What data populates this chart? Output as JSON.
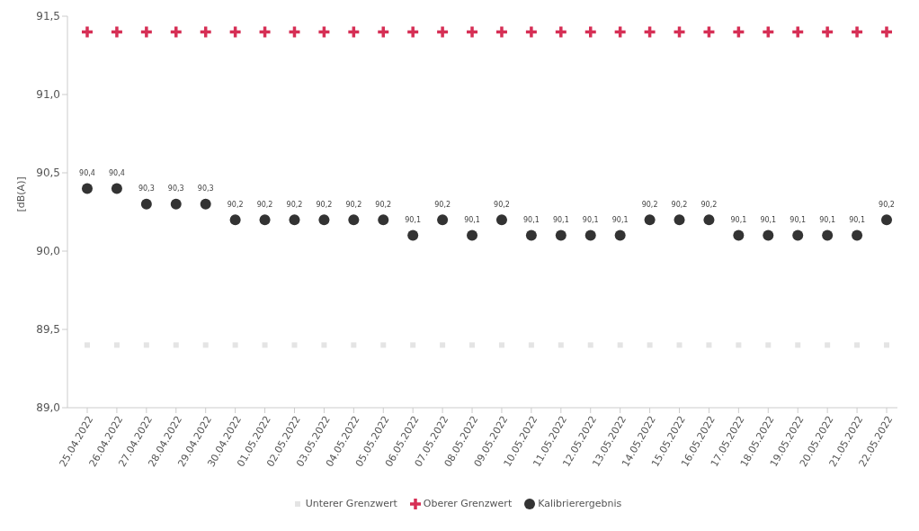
{
  "chart_data": {
    "type": "scatter",
    "ylabel": "[dB(A)]",
    "categories": [
      "25.04.2022",
      "26.04.2022",
      "27.04.2022",
      "28.04.2022",
      "29.04.2022",
      "30.04.2022",
      "01.05.2022",
      "02.05.2022",
      "03.05.2022",
      "04.05.2022",
      "05.05.2022",
      "06.05.2022",
      "07.05.2022",
      "08.05.2022",
      "09.05.2022",
      "10.05.2022",
      "11.05.2022",
      "12.05.2022",
      "13.05.2022",
      "14.05.2022",
      "15.05.2022",
      "16.05.2022",
      "17.05.2022",
      "18.05.2022",
      "19.05.2022",
      "20.05.2022",
      "21.05.2022",
      "22.05.2022"
    ],
    "series": [
      {
        "name": "Unterer Grenzwert",
        "color": "#e4e4e4",
        "marker": "square",
        "values": [
          89.4,
          89.4,
          89.4,
          89.4,
          89.4,
          89.4,
          89.4,
          89.4,
          89.4,
          89.4,
          89.4,
          89.4,
          89.4,
          89.4,
          89.4,
          89.4,
          89.4,
          89.4,
          89.4,
          89.4,
          89.4,
          89.4,
          89.4,
          89.4,
          89.4,
          89.4,
          89.4,
          89.4
        ]
      },
      {
        "name": "Oberer Grenzwert",
        "color": "#d62f55",
        "marker": "cross",
        "values": [
          91.4,
          91.4,
          91.4,
          91.4,
          91.4,
          91.4,
          91.4,
          91.4,
          91.4,
          91.4,
          91.4,
          91.4,
          91.4,
          91.4,
          91.4,
          91.4,
          91.4,
          91.4,
          91.4,
          91.4,
          91.4,
          91.4,
          91.4,
          91.4,
          91.4,
          91.4,
          91.4,
          91.4
        ]
      },
      {
        "name": "Kalibrierergebnis",
        "color": "#333333",
        "marker": "circle",
        "values": [
          90.4,
          90.4,
          90.3,
          90.3,
          90.3,
          90.2,
          90.2,
          90.2,
          90.2,
          90.2,
          90.2,
          90.1,
          90.2,
          90.1,
          90.2,
          90.1,
          90.1,
          90.1,
          90.1,
          90.2,
          90.2,
          90.2,
          90.1,
          90.1,
          90.1,
          90.1,
          90.1,
          90.2
        ],
        "value_labels": [
          "90,4",
          "90,4",
          "90,3",
          "90,3",
          "90,3",
          "90,2",
          "90,2",
          "90,2",
          "90,2",
          "90,2",
          "90,2",
          "90,1",
          "90,2",
          "90,1",
          "90,2",
          "90,1",
          "90,1",
          "90,1",
          "90,1",
          "90,2",
          "90,2",
          "90,2",
          "90,1",
          "90,1",
          "90,1",
          "90,1",
          "90,1",
          "90,2"
        ]
      }
    ],
    "ylim": [
      89.0,
      91.5
    ],
    "yticks": [
      {
        "value": 89.0,
        "label": "89,0"
      },
      {
        "value": 89.5,
        "label": "89,5"
      },
      {
        "value": 90.0,
        "label": "90,0"
      },
      {
        "value": 90.5,
        "label": "90,5"
      },
      {
        "value": 91.0,
        "label": "91,0"
      },
      {
        "value": 91.5,
        "label": "91,5"
      }
    ],
    "grid": false,
    "legend": "bottom"
  }
}
